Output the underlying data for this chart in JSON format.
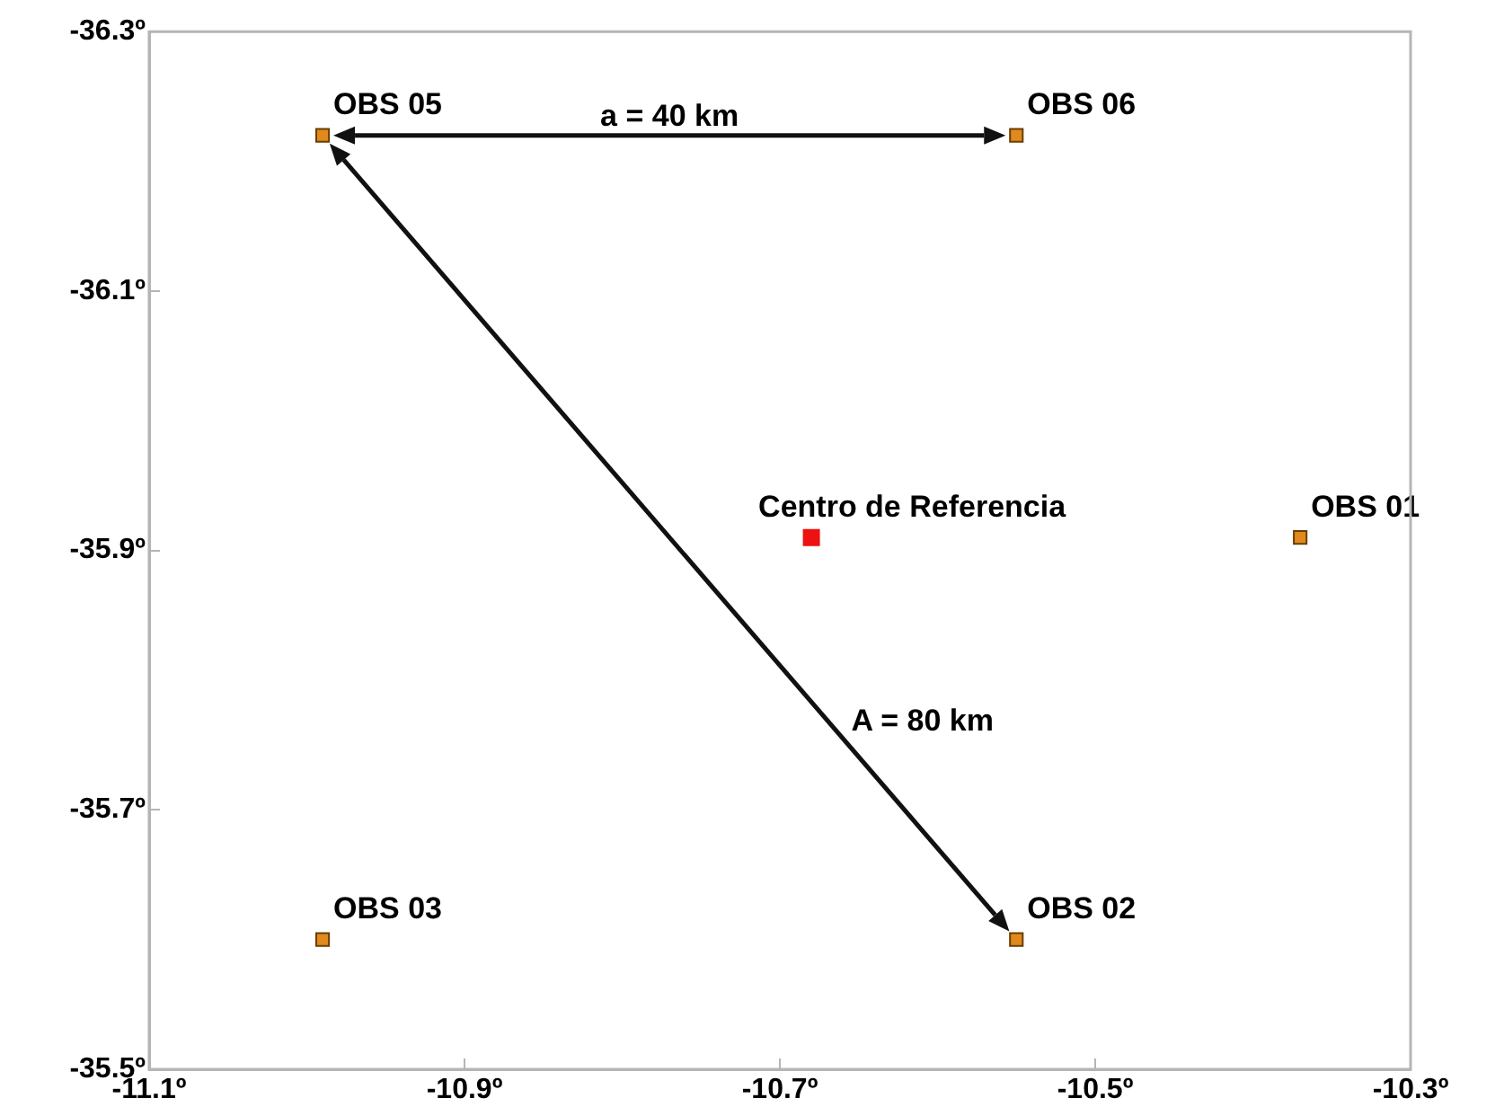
{
  "chart_data": {
    "type": "scatter",
    "xlim": [
      -11.1,
      -10.3
    ],
    "ylim": [
      -35.5,
      -36.3
    ],
    "xticks": [
      {
        "value": -11.1,
        "label": "-11.1º"
      },
      {
        "value": -10.9,
        "label": "-10.9º"
      },
      {
        "value": -10.7,
        "label": "-10.7º"
      },
      {
        "value": -10.5,
        "label": "-10.5º"
      },
      {
        "value": -10.3,
        "label": "-10.3º"
      }
    ],
    "yticks": [
      {
        "value": -36.3,
        "label": "-36.3º"
      },
      {
        "value": -36.1,
        "label": "-36.1º"
      },
      {
        "value": -35.9,
        "label": "-35.9º"
      },
      {
        "value": -35.7,
        "label": "-35.7º"
      },
      {
        "value": -35.5,
        "label": "-35.5º"
      }
    ],
    "grid": false,
    "legend": false,
    "marker": "square",
    "series": [
      {
        "name": "OBS 01",
        "color": "#e08a1e",
        "x": [
          -10.37
        ],
        "values": [
          -35.91
        ]
      },
      {
        "name": "OBS 02",
        "color": "#e08a1e",
        "x": [
          -10.55
        ],
        "values": [
          -35.6
        ]
      },
      {
        "name": "OBS 03",
        "color": "#e08a1e",
        "x": [
          -10.99
        ],
        "values": [
          -35.6
        ]
      },
      {
        "name": "OBS 05",
        "color": "#e08a1e",
        "x": [
          -10.99
        ],
        "values": [
          -36.22
        ]
      },
      {
        "name": "OBS 06",
        "color": "#e08a1e",
        "x": [
          -10.55
        ],
        "values": [
          -36.22
        ]
      },
      {
        "name": "Centro de Referencia",
        "color": "#ee1111",
        "x": [
          -10.68
        ],
        "values": [
          -35.91
        ]
      }
    ],
    "annotations": [
      "a = 40 km",
      "A = 80 km"
    ]
  }
}
